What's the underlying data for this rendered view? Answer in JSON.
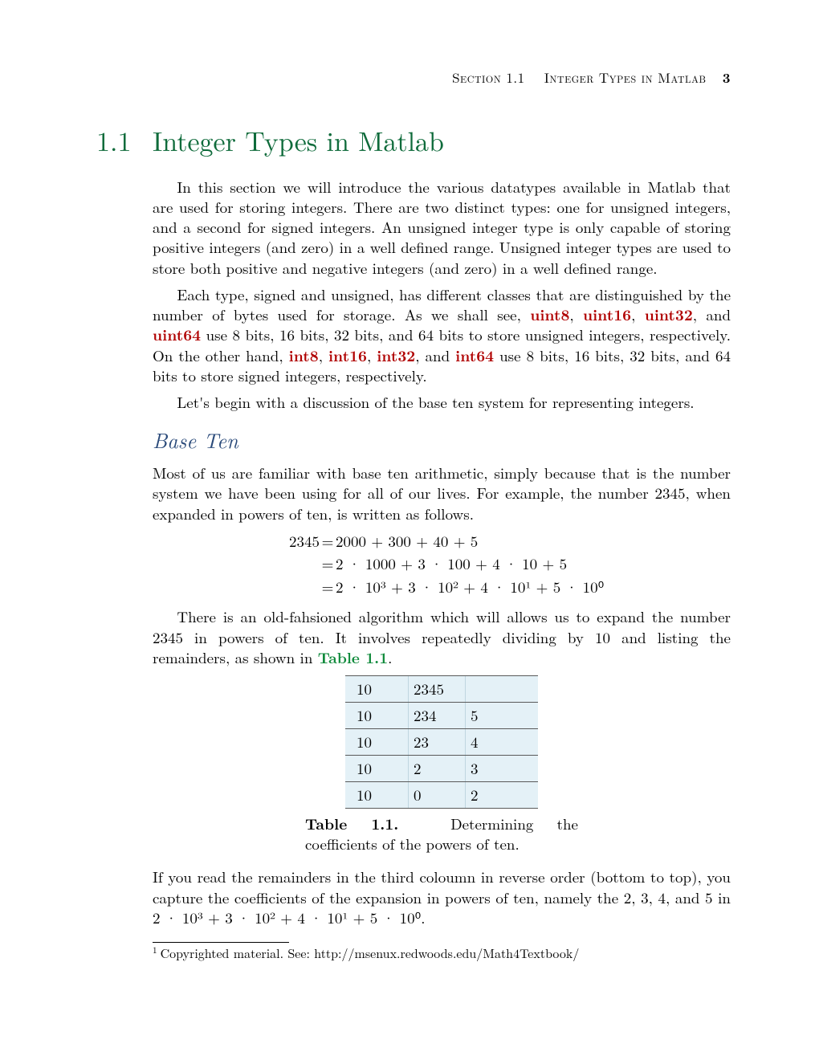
{
  "header": {
    "section_label": "Section 1.1",
    "title": "Integer Types in Matlab",
    "page_number": "3"
  },
  "section": {
    "number": "1.1",
    "title": "Integer Types in Matlab"
  },
  "paragraphs": {
    "p1": "In this section we will introduce the various datatypes available in Matlab that are used for storing integers. There are two distinct types: one for unsigned integers, and a second for signed integers. An unsigned integer type is only capable of storing positive integers (and zero) in a well defined range. Unsigned integer types are used to store both positive and negative integers (and zero) in a well defined range.",
    "p2_a": "Each type, signed and unsigned, has different classes that are distinguished by the number of bytes used for storage. As we shall see, ",
    "p2_b": ", and ",
    "p2_c": " use 8 bits, 16 bits, 32 bits, and 64 bits to store unsigned integers, respectively. On the other hand, ",
    "p2_d": ", and ",
    "p2_e": " use 8 bits, 16 bits, 32 bits, and 64 bits to store signed integers, respectively.",
    "p3": "Let's begin with a discussion of the base ten system for representing integers.",
    "p4": "Most of us are familiar with base ten arithmetic, simply because that is the number system we have been using for all of our lives. For example, the number 2345, when expanded in powers of ten, is written as follows.",
    "p5_a": "There is an old-fahsioned algorithm which will allows us to expand the number 2345 in powers of ten. It involves repeatedly dividing by 10 and listing the remainders, as shown in ",
    "p5_b": ".",
    "p6": "If you read the remainders in the third coloumn in reverse order (bottom to top), you capture the coefficients of the expansion in powers of ten, namely the 2, 3, 4, and 5 in 2 · 10³ + 3 · 10² + 4 · 10¹ + 5 · 10⁰."
  },
  "keywords": {
    "u8": "uint8",
    "u16": "uint16",
    "u32": "uint32",
    "u64": "uint64",
    "i8": "int8",
    "i16": "int16",
    "i32": "int32",
    "i64": "int64"
  },
  "links": {
    "table_ref": "Table 1.1"
  },
  "subhead": {
    "base_ten": "Base Ten"
  },
  "equation": {
    "lhs": "2345",
    "r1": "2000 + 300 + 40 + 5",
    "r2": "2 · 1000 + 3 · 100 + 4 · 10 + 5",
    "r3": "2 · 10³ + 3 · 10² + 4 · 10¹ + 5 · 10⁰"
  },
  "table": {
    "rows": [
      [
        "10",
        "2345",
        ""
      ],
      [
        "10",
        "234",
        "5"
      ],
      [
        "10",
        "23",
        "4"
      ],
      [
        "10",
        "2",
        "3"
      ],
      [
        "10",
        "0",
        "2"
      ]
    ],
    "col_bg": "#e4f1f7",
    "border_color": "#5a5a5a"
  },
  "caption": {
    "label": "Table 1.1.",
    "text": "Determining the coefficients of the powers of ten."
  },
  "footnote": {
    "mark": "1",
    "text": "Copyrighted material. See: http://msenux.redwoods.edu/Math4Textbook/"
  },
  "colors": {
    "heading_green": "#0f6b3b",
    "link_green": "#0f8a3b",
    "keyword_red": "#b00000",
    "subhead_blue": "#2a4a7a",
    "table_bg": "#e4f1f7"
  },
  "typography": {
    "body_fontsize_pt": 14,
    "h1_fontsize_pt": 26,
    "h2_fontsize_pt": 20,
    "font_family": "Computer Modern / Latin Modern"
  }
}
